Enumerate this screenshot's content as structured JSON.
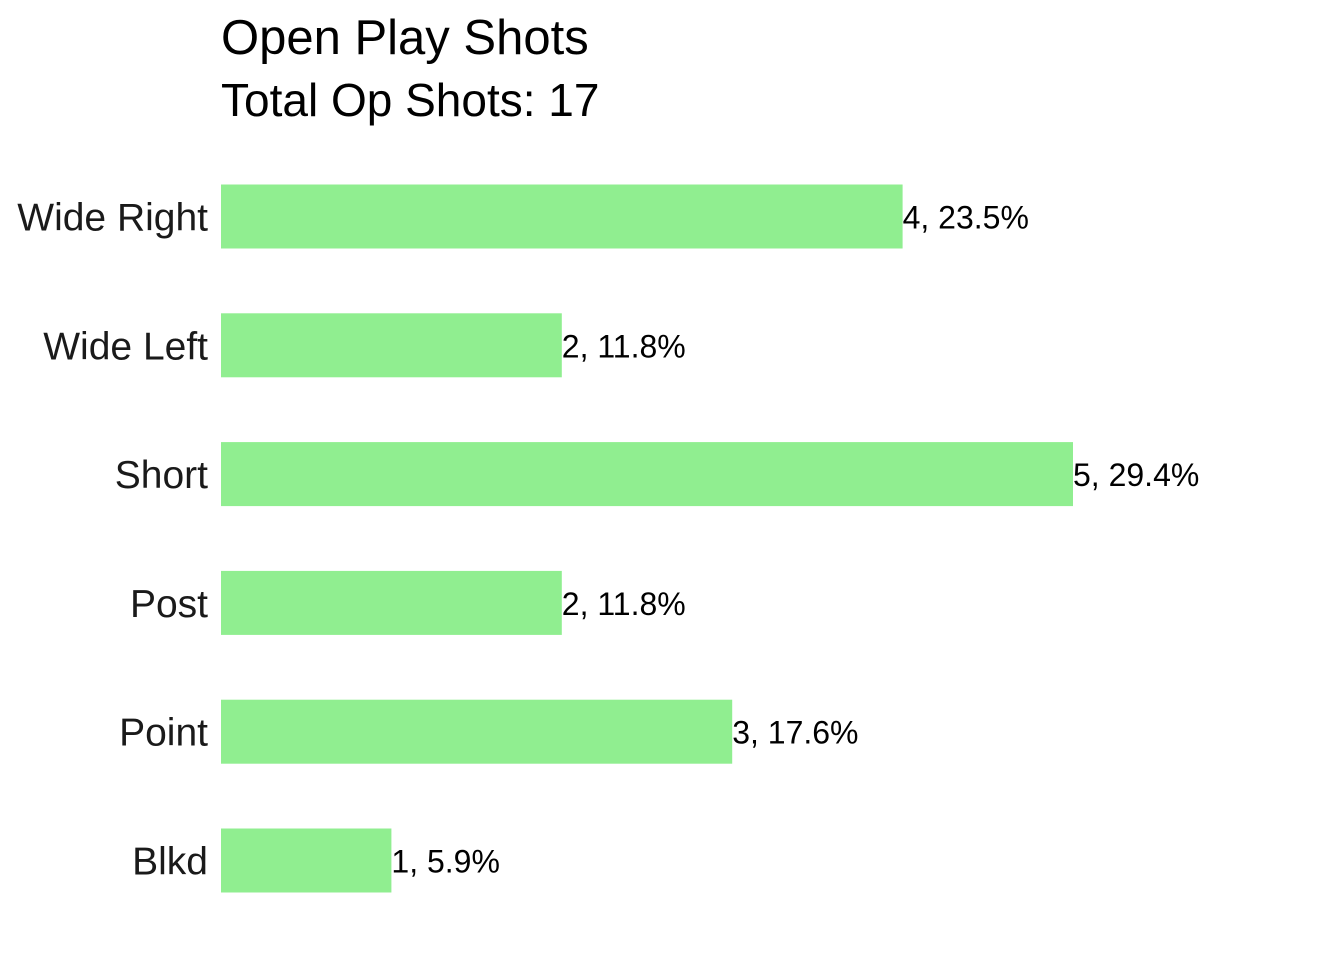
{
  "chart_data": {
    "type": "bar",
    "orientation": "horizontal",
    "title": "Open Play Shots",
    "subtitle": "Total Op Shots: 17",
    "xlabel": "",
    "ylabel": "",
    "categories": [
      "Wide Right",
      "Wide Left",
      "Short",
      "Post",
      "Point",
      "Blkd"
    ],
    "values": [
      4,
      2,
      5,
      2,
      3,
      1
    ],
    "data_labels": [
      "4, 23.5%",
      "2, 11.8%",
      "5, 29.4%",
      "2, 11.8%",
      "3, 17.6%",
      "1, 5.9%"
    ],
    "xlim": [
      0,
      5
    ],
    "grid": false,
    "legend": "none",
    "colors": {
      "bar": "#90ee90",
      "text": "#000000",
      "category_text": "#1a1a1a",
      "background": "#ffffff"
    }
  }
}
